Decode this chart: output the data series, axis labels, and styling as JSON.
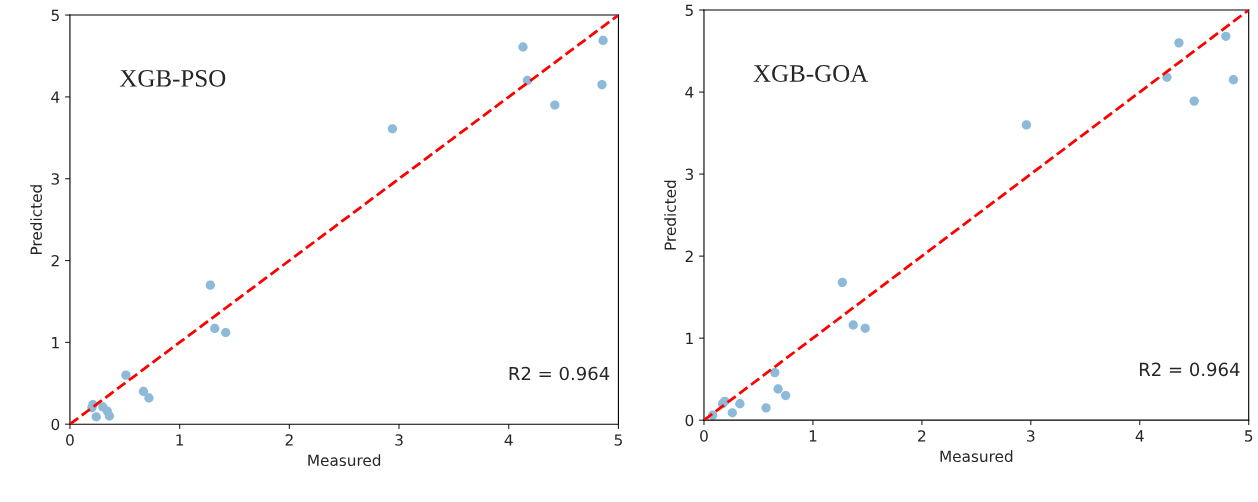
{
  "chart_data": [
    {
      "type": "scatter",
      "xlabel": "Measured",
      "ylabel": "Predicted",
      "annotations": [
        "XGB-PSO",
        "R2 = 0.964"
      ],
      "xlim": [
        0,
        5
      ],
      "ylim": [
        0,
        5
      ],
      "xticks": [
        0,
        1,
        2,
        3,
        4,
        5
      ],
      "yticks": [
        0,
        1,
        2,
        3,
        4,
        5
      ],
      "grid": false,
      "legend": false,
      "series": [
        {
          "color": "#8ebad9",
          "marker": "circle",
          "x": [
            4.13,
            4.86,
            4.17,
            4.85,
            4.42,
            2.94,
            1.28,
            1.32,
            1.42,
            0.51,
            0.67,
            0.72,
            0.21,
            0.2,
            0.24,
            0.3,
            0.34,
            0.36
          ],
          "values": [
            4.61,
            4.69,
            4.2,
            4.15,
            3.9,
            3.61,
            1.7,
            1.17,
            1.12,
            0.6,
            0.4,
            0.32,
            0.24,
            0.2,
            0.09,
            0.21,
            0.16,
            0.1
          ]
        },
        {
          "type": "line",
          "color": "#ff0000",
          "line_style": "dashed",
          "marker": "none",
          "x": [
            0,
            5
          ],
          "values": [
            0,
            5
          ]
        }
      ]
    },
    {
      "type": "scatter",
      "xlabel": "Measured",
      "ylabel": "Predicted",
      "annotations": [
        "XGB-GOA",
        "R2 = 0.964"
      ],
      "xlim": [
        0,
        5
      ],
      "ylim": [
        0,
        5
      ],
      "xticks": [
        0,
        1,
        2,
        3,
        4,
        5
      ],
      "yticks": [
        0,
        1,
        2,
        3,
        4,
        5
      ],
      "grid": false,
      "legend": false,
      "series": [
        {
          "color": "#8ebad9",
          "marker": "circle",
          "x": [
            4.36,
            4.79,
            4.25,
            4.86,
            4.5,
            2.96,
            1.27,
            1.37,
            1.48,
            0.65,
            0.68,
            0.75,
            0.57,
            0.33,
            0.17,
            0.19,
            0.26,
            0.08
          ],
          "values": [
            4.6,
            4.68,
            4.18,
            4.15,
            3.89,
            3.6,
            1.68,
            1.16,
            1.12,
            0.58,
            0.38,
            0.3,
            0.15,
            0.2,
            0.2,
            0.23,
            0.09,
            0.06
          ]
        },
        {
          "type": "line",
          "color": "#ff0000",
          "line_style": "dashed",
          "marker": "none",
          "x": [
            0,
            5
          ],
          "values": [
            0,
            5
          ]
        }
      ]
    }
  ]
}
